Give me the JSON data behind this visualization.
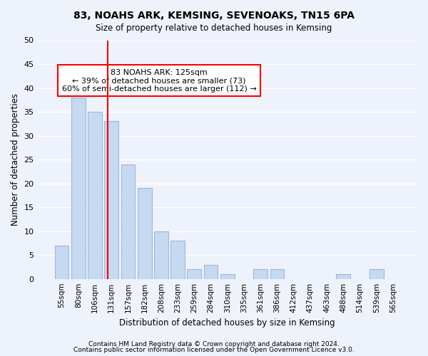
{
  "title": "83, NOAHS ARK, KEMSING, SEVENOAKS, TN15 6PA",
  "subtitle": "Size of property relative to detached houses in Kemsing",
  "xlabel": "Distribution of detached houses by size in Kemsing",
  "ylabel": "Number of detached properties",
  "bar_labels": [
    "55sqm",
    "80sqm",
    "106sqm",
    "131sqm",
    "157sqm",
    "182sqm",
    "208sqm",
    "233sqm",
    "259sqm",
    "284sqm",
    "310sqm",
    "335sqm",
    "361sqm",
    "386sqm",
    "412sqm",
    "437sqm",
    "463sqm",
    "488sqm",
    "514sqm",
    "539sqm",
    "565sqm"
  ],
  "bar_values": [
    7,
    38,
    35,
    33,
    24,
    19,
    10,
    8,
    2,
    3,
    1,
    0,
    2,
    2,
    0,
    0,
    0,
    1,
    0,
    2,
    0
  ],
  "bar_color": "#c5d9f1",
  "bar_edge_color": "#a0b8d8",
  "vline_x": 2.76,
  "vline_color": "red",
  "annotation_title": "83 NOAHS ARK: 125sqm",
  "annotation_line1": "← 39% of detached houses are smaller (73)",
  "annotation_line2": "60% of semi-detached houses are larger (112) →",
  "annotation_box_color": "white",
  "annotation_box_edge": "red",
  "ylim": [
    0,
    50
  ],
  "yticks": [
    0,
    5,
    10,
    15,
    20,
    25,
    30,
    35,
    40,
    45,
    50
  ],
  "footer1": "Contains HM Land Registry data © Crown copyright and database right 2024.",
  "footer2": "Contains public sector information licensed under the Open Government Licence v3.0.",
  "background_color": "#eef2fb",
  "grid_color": "#ffffff"
}
